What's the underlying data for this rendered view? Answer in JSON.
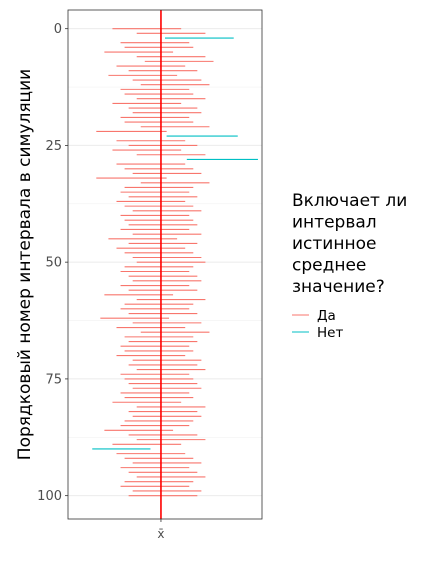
{
  "chart_data": {
    "type": "interval",
    "ylabel": "Порядковый номер интервала в симуляции",
    "xlabel": "",
    "x_tick_label": "x̄",
    "y_ticks": [
      0,
      25,
      50,
      75,
      100
    ],
    "ylim": [
      -4,
      105
    ],
    "xlim": [
      -1.15,
      1.25
    ],
    "true_mean": 0,
    "legend": {
      "title": "Включает ли интервал истинное среднее значение?",
      "title_lines": [
        "Включает ли",
        "интервал",
        "истинное",
        "среднее",
        "значение?"
      ],
      "placement": "right",
      "entries": [
        {
          "label": "Да",
          "color": "#F8766D"
        },
        {
          "label": "Нет",
          "color": "#00BFC4"
        }
      ]
    },
    "colors": {
      "yes": "#F8766D",
      "no": "#00BFC4",
      "mean_line": "#ff0000"
    },
    "intervals": [
      [
        -0.6,
        0.25
      ],
      [
        -0.3,
        0.55
      ],
      [
        0.05,
        0.9
      ],
      [
        -0.5,
        0.35
      ],
      [
        -0.45,
        0.4
      ],
      [
        -0.7,
        0.15
      ],
      [
        -0.3,
        0.55
      ],
      [
        -0.2,
        0.65
      ],
      [
        -0.55,
        0.3
      ],
      [
        -0.4,
        0.45
      ],
      [
        -0.65,
        0.2
      ],
      [
        -0.35,
        0.5
      ],
      [
        -0.25,
        0.6
      ],
      [
        -0.5,
        0.35
      ],
      [
        -0.45,
        0.4
      ],
      [
        -0.3,
        0.55
      ],
      [
        -0.6,
        0.25
      ],
      [
        -0.4,
        0.45
      ],
      [
        -0.35,
        0.5
      ],
      [
        -0.5,
        0.35
      ],
      [
        -0.45,
        0.4
      ],
      [
        -0.25,
        0.6
      ],
      [
        -0.8,
        0.07
      ],
      [
        0.07,
        0.95
      ],
      [
        -0.55,
        0.3
      ],
      [
        -0.4,
        0.45
      ],
      [
        -0.6,
        0.25
      ],
      [
        -0.3,
        0.55
      ],
      [
        0.32,
        1.2
      ],
      [
        -0.55,
        0.3
      ],
      [
        -0.45,
        0.4
      ],
      [
        -0.35,
        0.5
      ],
      [
        -0.8,
        0.07
      ],
      [
        -0.25,
        0.6
      ],
      [
        -0.45,
        0.4
      ],
      [
        -0.5,
        0.35
      ],
      [
        -0.4,
        0.45
      ],
      [
        -0.55,
        0.3
      ],
      [
        -0.45,
        0.4
      ],
      [
        -0.35,
        0.5
      ],
      [
        -0.5,
        0.35
      ],
      [
        -0.45,
        0.4
      ],
      [
        -0.4,
        0.45
      ],
      [
        -0.5,
        0.35
      ],
      [
        -0.35,
        0.5
      ],
      [
        -0.65,
        0.2
      ],
      [
        -0.4,
        0.45
      ],
      [
        -0.55,
        0.3
      ],
      [
        -0.45,
        0.4
      ],
      [
        -0.35,
        0.5
      ],
      [
        -0.3,
        0.55
      ],
      [
        -0.45,
        0.4
      ],
      [
        -0.5,
        0.35
      ],
      [
        -0.4,
        0.45
      ],
      [
        -0.35,
        0.5
      ],
      [
        -0.5,
        0.35
      ],
      [
        -0.4,
        0.45
      ],
      [
        -0.7,
        0.15
      ],
      [
        -0.3,
        0.55
      ],
      [
        -0.45,
        0.4
      ],
      [
        -0.5,
        0.35
      ],
      [
        -0.4,
        0.45
      ],
      [
        -0.75,
        0.1
      ],
      [
        -0.35,
        0.5
      ],
      [
        -0.55,
        0.3
      ],
      [
        -0.25,
        0.6
      ],
      [
        -0.45,
        0.4
      ],
      [
        -0.4,
        0.45
      ],
      [
        -0.5,
        0.35
      ],
      [
        -0.45,
        0.4
      ],
      [
        -0.55,
        0.3
      ],
      [
        -0.35,
        0.5
      ],
      [
        -0.4,
        0.45
      ],
      [
        -0.3,
        0.55
      ],
      [
        -0.5,
        0.35
      ],
      [
        -0.45,
        0.4
      ],
      [
        -0.4,
        0.45
      ],
      [
        -0.35,
        0.5
      ],
      [
        -0.5,
        0.35
      ],
      [
        -0.45,
        0.4
      ],
      [
        -0.6,
        0.25
      ],
      [
        -0.3,
        0.55
      ],
      [
        -0.4,
        0.45
      ],
      [
        -0.35,
        0.5
      ],
      [
        -0.45,
        0.4
      ],
      [
        -0.5,
        0.35
      ],
      [
        -0.7,
        0.15
      ],
      [
        -0.4,
        0.45
      ],
      [
        -0.3,
        0.55
      ],
      [
        -0.6,
        0.25
      ],
      [
        -0.85,
        -0.13
      ],
      [
        -0.55,
        0.3
      ],
      [
        -0.45,
        0.4
      ],
      [
        -0.35,
        0.5
      ],
      [
        -0.5,
        0.35
      ],
      [
        -0.4,
        0.45
      ],
      [
        -0.3,
        0.55
      ],
      [
        -0.45,
        0.4
      ],
      [
        -0.5,
        0.35
      ],
      [
        -0.35,
        0.5
      ],
      [
        -0.4,
        0.45
      ]
    ]
  }
}
